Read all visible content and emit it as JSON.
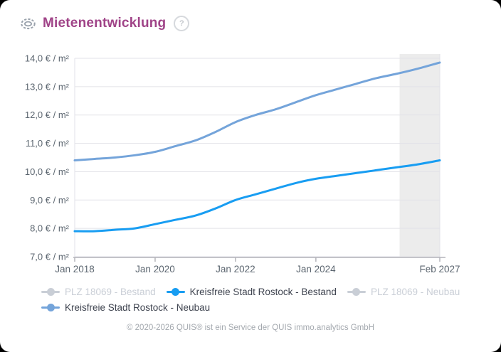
{
  "header": {
    "title": "Mietenentwicklung",
    "help_glyph": "?"
  },
  "footer": {
    "copyright": "© 2020-2026 QUIS® ist ein Service der QUIS immo.analytics GmbH"
  },
  "colors": {
    "title": "#a04488",
    "axis_text": "#5c6670",
    "grid": "#e2e2e8",
    "axis_line": "#b4b4ba",
    "forecast_band": "#ececec",
    "legend_inactive": "#c9ced6",
    "legend_active_text": "#3f4450",
    "icon_gray": "#9aa2ac"
  },
  "chart_data": {
    "type": "line",
    "title": "Mietenentwicklung",
    "ylabel": "€ / m²",
    "ylim": [
      7,
      14
    ],
    "grid": "horizontal",
    "x_unit": "months since Jan 2018",
    "x_range_months": [
      0,
      109
    ],
    "y_ticks": [
      {
        "v": 14,
        "label": "14,0 € / m²"
      },
      {
        "v": 13,
        "label": "13,0 € / m²"
      },
      {
        "v": 12,
        "label": "12,0 € / m²"
      },
      {
        "v": 11,
        "label": "11,0 € / m²"
      },
      {
        "v": 10,
        "label": "10,0 € / m²"
      },
      {
        "v": 9,
        "label": "9,0 € / m²"
      },
      {
        "v": 8,
        "label": "8,0 € / m²"
      },
      {
        "v": 7,
        "label": "7,0 € / m²"
      }
    ],
    "x_ticks": [
      {
        "m": 0,
        "label": "Jan 2018"
      },
      {
        "m": 24,
        "label": "Jan 2020"
      },
      {
        "m": 48,
        "label": "Jan 2022"
      },
      {
        "m": 72,
        "label": "Jan 2024"
      },
      {
        "m": 109,
        "label": "Feb 2027"
      }
    ],
    "forecast_band": {
      "start_month": 97,
      "end_month": 109
    },
    "legend_position": "bottom-left",
    "series": [
      {
        "id": "plz-18069-bestand",
        "label": "PLZ 18069 - Bestand",
        "color": "#c9ced6",
        "active": false,
        "points": []
      },
      {
        "id": "rostock-bestand",
        "label": "Kreisfreie Stadt Rostock - Bestand",
        "color": "#189df2",
        "active": true,
        "points": [
          [
            0,
            7.9
          ],
          [
            6,
            7.9
          ],
          [
            12,
            7.95
          ],
          [
            18,
            8.0
          ],
          [
            24,
            8.15
          ],
          [
            30,
            8.3
          ],
          [
            36,
            8.45
          ],
          [
            42,
            8.7
          ],
          [
            48,
            9.0
          ],
          [
            54,
            9.2
          ],
          [
            60,
            9.4
          ],
          [
            66,
            9.6
          ],
          [
            72,
            9.75
          ],
          [
            78,
            9.85
          ],
          [
            84,
            9.95
          ],
          [
            90,
            10.05
          ],
          [
            96,
            10.15
          ],
          [
            102,
            10.25
          ],
          [
            109,
            10.4
          ]
        ]
      },
      {
        "id": "plz-18069-neubau",
        "label": "PLZ 18069 - Neubau",
        "color": "#c9ced6",
        "active": false,
        "points": []
      },
      {
        "id": "rostock-neubau",
        "label": "Kreisfreie Stadt Rostock - Neubau",
        "color": "#74a4da",
        "active": true,
        "points": [
          [
            0,
            10.4
          ],
          [
            6,
            10.45
          ],
          [
            12,
            10.5
          ],
          [
            18,
            10.58
          ],
          [
            24,
            10.7
          ],
          [
            30,
            10.9
          ],
          [
            36,
            11.1
          ],
          [
            42,
            11.4
          ],
          [
            48,
            11.75
          ],
          [
            54,
            12.0
          ],
          [
            60,
            12.2
          ],
          [
            66,
            12.45
          ],
          [
            72,
            12.7
          ],
          [
            78,
            12.9
          ],
          [
            84,
            13.1
          ],
          [
            90,
            13.3
          ],
          [
            96,
            13.45
          ],
          [
            102,
            13.62
          ],
          [
            109,
            13.85
          ]
        ]
      }
    ]
  }
}
